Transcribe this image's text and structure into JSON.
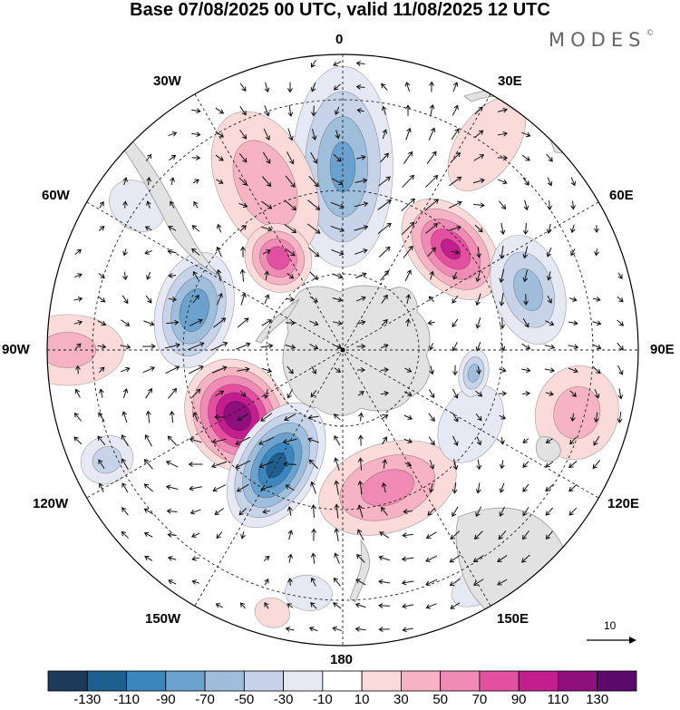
{
  "title": "Base 07/08/2025 00 UTC, valid 11/08/2025 12 UTC",
  "brand": {
    "name": "MODES",
    "mark": "©"
  },
  "meridian_labels": {
    "top": "0",
    "bottom": "180",
    "left": "90W",
    "right": "90E",
    "upper_left_outer": "60W",
    "upper_left_inner": "30W",
    "upper_right_inner": "30E",
    "upper_right_outer": "60E",
    "lower_left_outer": "120W",
    "lower_left_inner": "150W",
    "lower_right_inner": "150E",
    "lower_right_outer": "120E"
  },
  "reference_vector": {
    "label": "10"
  },
  "colorbar": {
    "labels": [
      "-130",
      "-110",
      "-90",
      "-70",
      "-50",
      "-30",
      "-10",
      "10",
      "30",
      "50",
      "70",
      "90",
      "110",
      "130"
    ],
    "colors": [
      "#1d3a5a",
      "#1f5f8f",
      "#3a86bd",
      "#6aa2cd",
      "#9ebedc",
      "#c7d3e8",
      "#e6e8f3",
      "#ffffff",
      "#fbdada",
      "#f6b3c4",
      "#ef8bb5",
      "#e3509f",
      "#c21e8e",
      "#8f0f7f",
      "#5b0a6a"
    ]
  },
  "map": {
    "anomalies": [
      {
        "lon": 0,
        "r": 0.62,
        "rx": 0.17,
        "ry": 0.34,
        "v": -70
      },
      {
        "lon": -25,
        "r": 0.62,
        "rx": 0.16,
        "ry": 0.26,
        "v": 40
      },
      {
        "lon": -35,
        "r": 0.38,
        "rx": 0.11,
        "ry": 0.12,
        "v": 80
      },
      {
        "lon": 47,
        "r": 0.5,
        "rx": 0.2,
        "ry": 0.13,
        "v": 90
      },
      {
        "lon": 72,
        "r": 0.66,
        "rx": 0.19,
        "ry": 0.12,
        "v": -55
      },
      {
        "lon": 35,
        "r": 0.85,
        "rx": 0.1,
        "ry": 0.18,
        "v": 25
      },
      {
        "lon": -75,
        "r": 0.52,
        "rx": 0.2,
        "ry": 0.13,
        "v": -85
      },
      {
        "lon": -90,
        "r": 0.93,
        "rx": 0.12,
        "ry": 0.19,
        "v": 30
      },
      {
        "lon": -55,
        "r": 0.85,
        "rx": 0.08,
        "ry": 0.1,
        "v": -20
      },
      {
        "lon": -122,
        "r": 0.42,
        "rx": 0.2,
        "ry": 0.17,
        "v": 125
      },
      {
        "lon": -115,
        "r": 0.88,
        "rx": 0.08,
        "ry": 0.09,
        "v": -35
      },
      {
        "lon": -150,
        "r": 0.45,
        "rx": 0.14,
        "ry": 0.23,
        "v": -115
      },
      {
        "lon": 162,
        "r": 0.49,
        "rx": 0.24,
        "ry": 0.15,
        "v": 55
      },
      {
        "lon": 105,
        "r": 0.82,
        "rx": 0.16,
        "ry": 0.14,
        "v": 35
      },
      {
        "lon": 120,
        "r": 0.5,
        "rx": 0.14,
        "ry": 0.1,
        "v": -25
      },
      {
        "lon": 100,
        "r": 0.45,
        "rx": 0.08,
        "ry": 0.05,
        "v": -55
      },
      {
        "lon": 150,
        "r": 0.92,
        "rx": 0.1,
        "ry": 0.06,
        "v": -20
      },
      {
        "lon": -165,
        "r": 0.92,
        "rx": 0.06,
        "ry": 0.05,
        "v": 25
      },
      {
        "lon": -172,
        "r": 0.83,
        "rx": 0.08,
        "ry": 0.06,
        "v": -20
      },
      {
        "lon": 140,
        "r": 0.85,
        "rx": 0.08,
        "ry": 0.06,
        "v": 20
      }
    ],
    "land_color": "#e2e2e2"
  }
}
